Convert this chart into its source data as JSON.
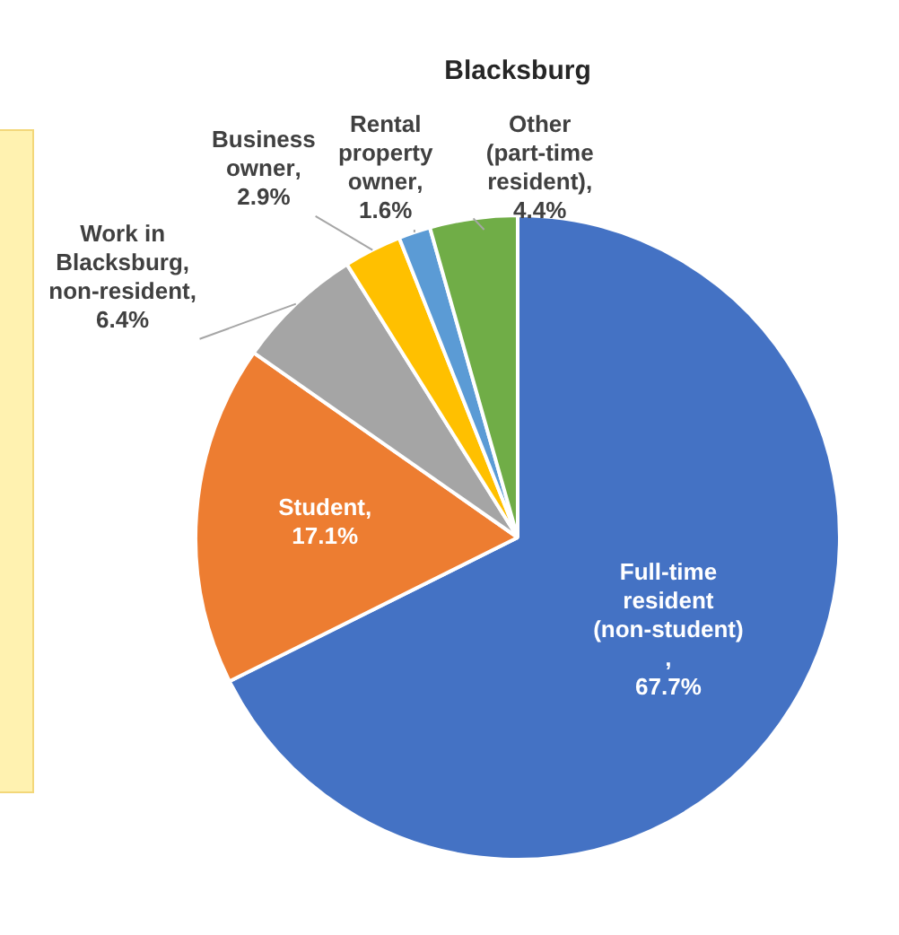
{
  "chart_data": {
    "type": "pie",
    "title": "Blacksburg",
    "categories": [
      "Full-time resident (non-student)",
      "Student",
      "Work in Blacksburg, non-resident",
      "Business owner",
      "Rental property owner",
      "Other (part-time resident)"
    ],
    "values": [
      67.7,
      17.1,
      6.4,
      2.9,
      1.6,
      4.4
    ],
    "colors": [
      "#4472c4",
      "#ed7d31",
      "#a5a5a5",
      "#ffc000",
      "#5b9bd5",
      "#70ad47"
    ],
    "value_labels": [
      ", 67.7%",
      ", 17.1%",
      ", 6.4%",
      ", 2.9%",
      ", 1.6%",
      ", 4.4%"
    ],
    "legend": false
  }
}
